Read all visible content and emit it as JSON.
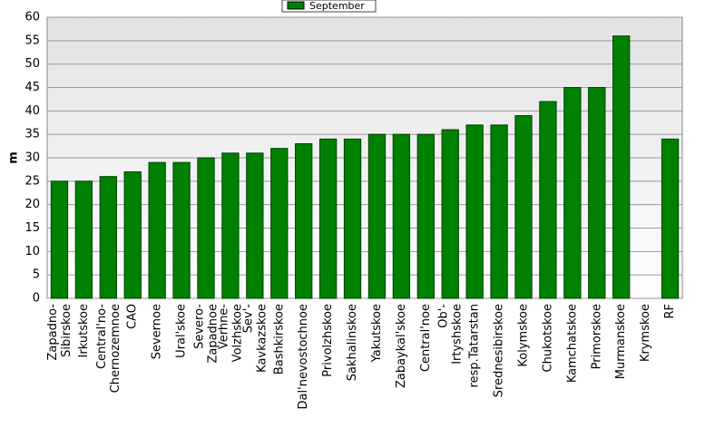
{
  "chart_data": {
    "type": "bar",
    "y_label": "m",
    "categories": [
      "Zapadno-\nSibirskoe",
      "Irkutskoe",
      "Central'no-\nChernozemnoe",
      "CAO",
      "Severnoe",
      "Ural'skoe",
      "Severo-\nZapadnoe",
      "Verhne-\nVolzhskoe",
      "Sev'-\nKavkazskoe",
      "Bashkirskoe",
      "Dal'nevostochnoe",
      "Privolzhskoe",
      "Sakhalinskoe",
      "Yakutskoe",
      "Zabaykal'skoe",
      "Central'noe",
      "Ob'-\nIrtyshskoe",
      "resp.Tatarstan",
      "Srednesibirskoe",
      "Kolymskoe",
      "Chukotskoe",
      "Kamchatskoe",
      "Primorskoe",
      "Murmanskoe",
      "Krymskoe",
      "RF"
    ],
    "series": [
      {
        "name": "September",
        "color": "#008000",
        "values": [
          25,
          25,
          26,
          27,
          29,
          29,
          30,
          31,
          31,
          32,
          33,
          34,
          34,
          35,
          35,
          35,
          36,
          37,
          37,
          39,
          42,
          45,
          45,
          56,
          null,
          34
        ]
      }
    ],
    "ylim": [
      0,
      60
    ],
    "yticks": [
      0,
      5,
      10,
      15,
      20,
      25,
      30,
      35,
      40,
      45,
      50,
      55,
      60
    ],
    "grid": true
  }
}
